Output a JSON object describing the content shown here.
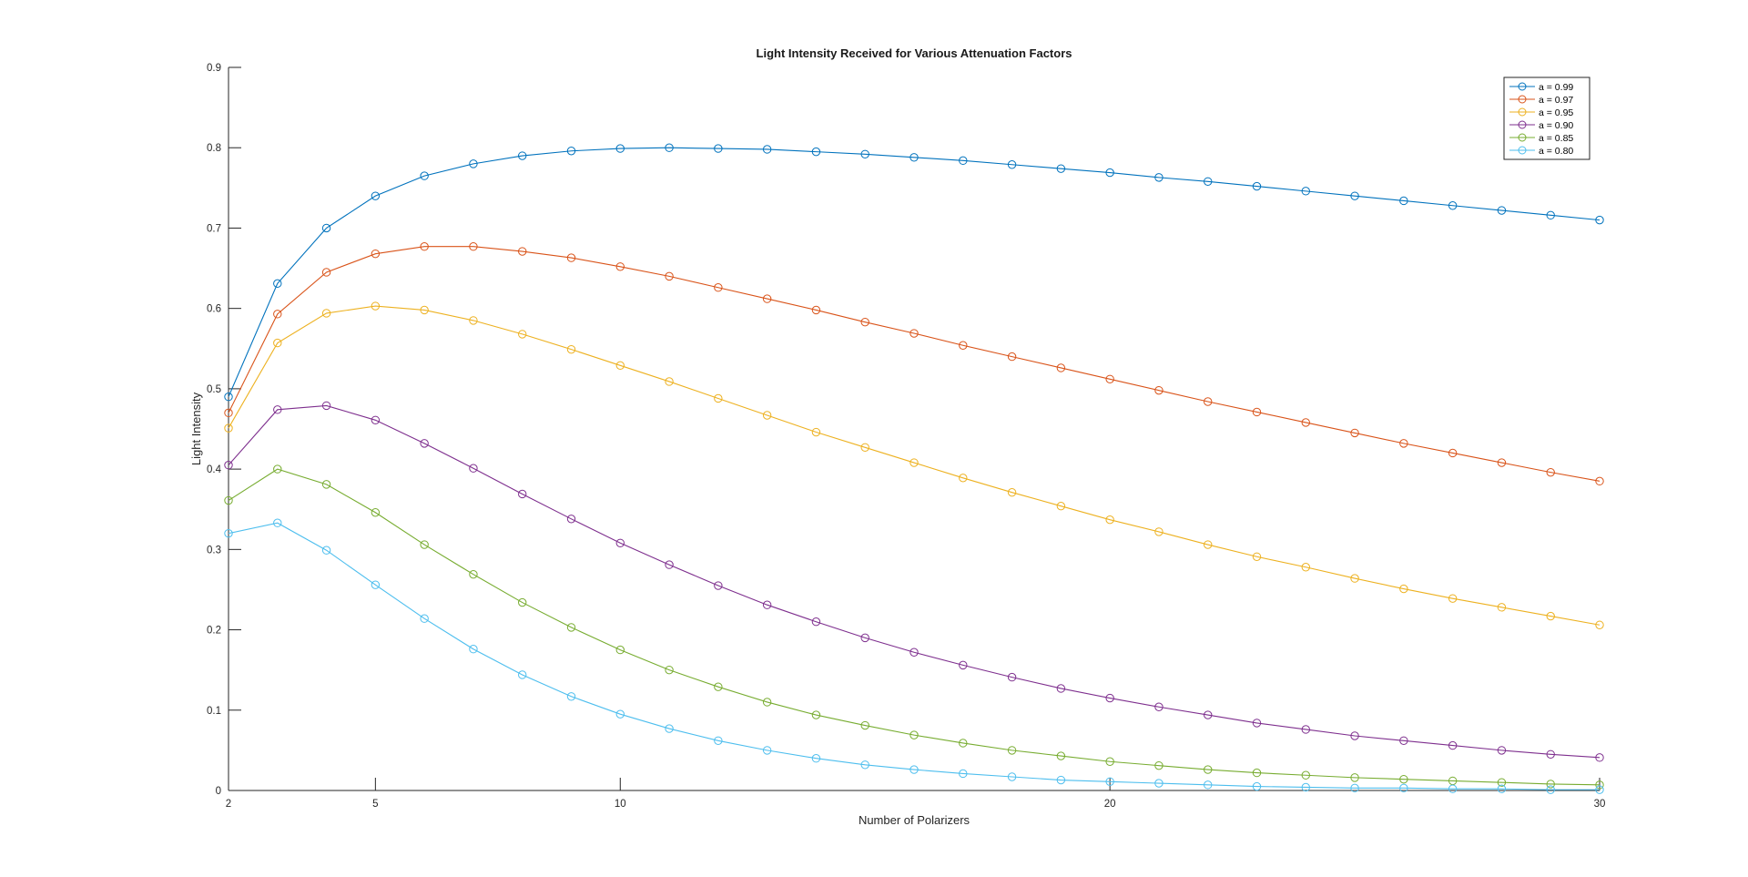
{
  "chart_data": {
    "type": "line",
    "title": "Light Intensity Received for Various Attenuation Factors",
    "xlabel": "Number of Polarizers",
    "ylabel": "Light Intensity",
    "xlim": [
      2,
      30
    ],
    "ylim": [
      0,
      0.9
    ],
    "xticks": [
      "2",
      "5",
      "10",
      "20",
      "30"
    ],
    "yticks": [
      "0",
      "0.1",
      "0.2",
      "0.3",
      "0.4",
      "0.5",
      "0.6",
      "0.7",
      "0.8",
      "0.9"
    ],
    "grid": false,
    "legend_position": "top-right",
    "marker": "circle",
    "x": [
      2,
      3,
      4,
      5,
      6,
      7,
      8,
      9,
      10,
      11,
      12,
      13,
      14,
      15,
      16,
      17,
      18,
      19,
      20,
      21,
      22,
      23,
      24,
      25,
      26,
      27,
      28,
      29,
      30
    ],
    "series": [
      {
        "name": "a = 0.99",
        "color": "#0072BD",
        "values": [
          0.49,
          0.631,
          0.7,
          0.74,
          0.765,
          0.78,
          0.79,
          0.796,
          0.799,
          0.8,
          0.799,
          0.798,
          0.795,
          0.792,
          0.788,
          0.784,
          0.779,
          0.774,
          0.769,
          0.763,
          0.758,
          0.752,
          0.746,
          0.74,
          0.734,
          0.728,
          0.722,
          0.716,
          0.71
        ]
      },
      {
        "name": "a = 0.97",
        "color": "#D95319",
        "values": [
          0.47,
          0.593,
          0.645,
          0.668,
          0.677,
          0.677,
          0.671,
          0.663,
          0.652,
          0.64,
          0.626,
          0.612,
          0.598,
          0.583,
          0.569,
          0.554,
          0.54,
          0.526,
          0.512,
          0.498,
          0.484,
          0.471,
          0.458,
          0.445,
          0.432,
          0.42,
          0.408,
          0.396,
          0.385
        ]
      },
      {
        "name": "a = 0.95",
        "color": "#EDB120",
        "values": [
          0.451,
          0.557,
          0.594,
          0.603,
          0.598,
          0.585,
          0.568,
          0.549,
          0.529,
          0.509,
          0.488,
          0.467,
          0.446,
          0.427,
          0.408,
          0.389,
          0.371,
          0.354,
          0.337,
          0.322,
          0.306,
          0.291,
          0.278,
          0.264,
          0.251,
          0.239,
          0.228,
          0.217,
          0.206
        ]
      },
      {
        "name": "a = 0.90",
        "color": "#7E2F8E",
        "values": [
          0.405,
          0.474,
          0.479,
          0.461,
          0.432,
          0.401,
          0.369,
          0.338,
          0.308,
          0.281,
          0.255,
          0.231,
          0.21,
          0.19,
          0.172,
          0.156,
          0.141,
          0.127,
          0.115,
          0.104,
          0.094,
          0.084,
          0.076,
          0.068,
          0.062,
          0.056,
          0.05,
          0.045,
          0.041
        ]
      },
      {
        "name": "a = 0.85",
        "color": "#77AC30",
        "values": [
          0.361,
          0.4,
          0.381,
          0.346,
          0.306,
          0.269,
          0.234,
          0.203,
          0.175,
          0.15,
          0.129,
          0.11,
          0.094,
          0.081,
          0.069,
          0.059,
          0.05,
          0.043,
          0.036,
          0.031,
          0.026,
          0.022,
          0.019,
          0.016,
          0.014,
          0.012,
          0.01,
          0.008,
          0.007
        ]
      },
      {
        "name": "a = 0.80",
        "color": "#4DBEEE",
        "values": [
          0.32,
          0.333,
          0.299,
          0.256,
          0.214,
          0.176,
          0.144,
          0.117,
          0.095,
          0.077,
          0.062,
          0.05,
          0.04,
          0.032,
          0.026,
          0.021,
          0.017,
          0.013,
          0.011,
          0.009,
          0.007,
          0.005,
          0.004,
          0.003,
          0.003,
          0.002,
          0.002,
          0.001,
          0.001
        ]
      }
    ]
  }
}
